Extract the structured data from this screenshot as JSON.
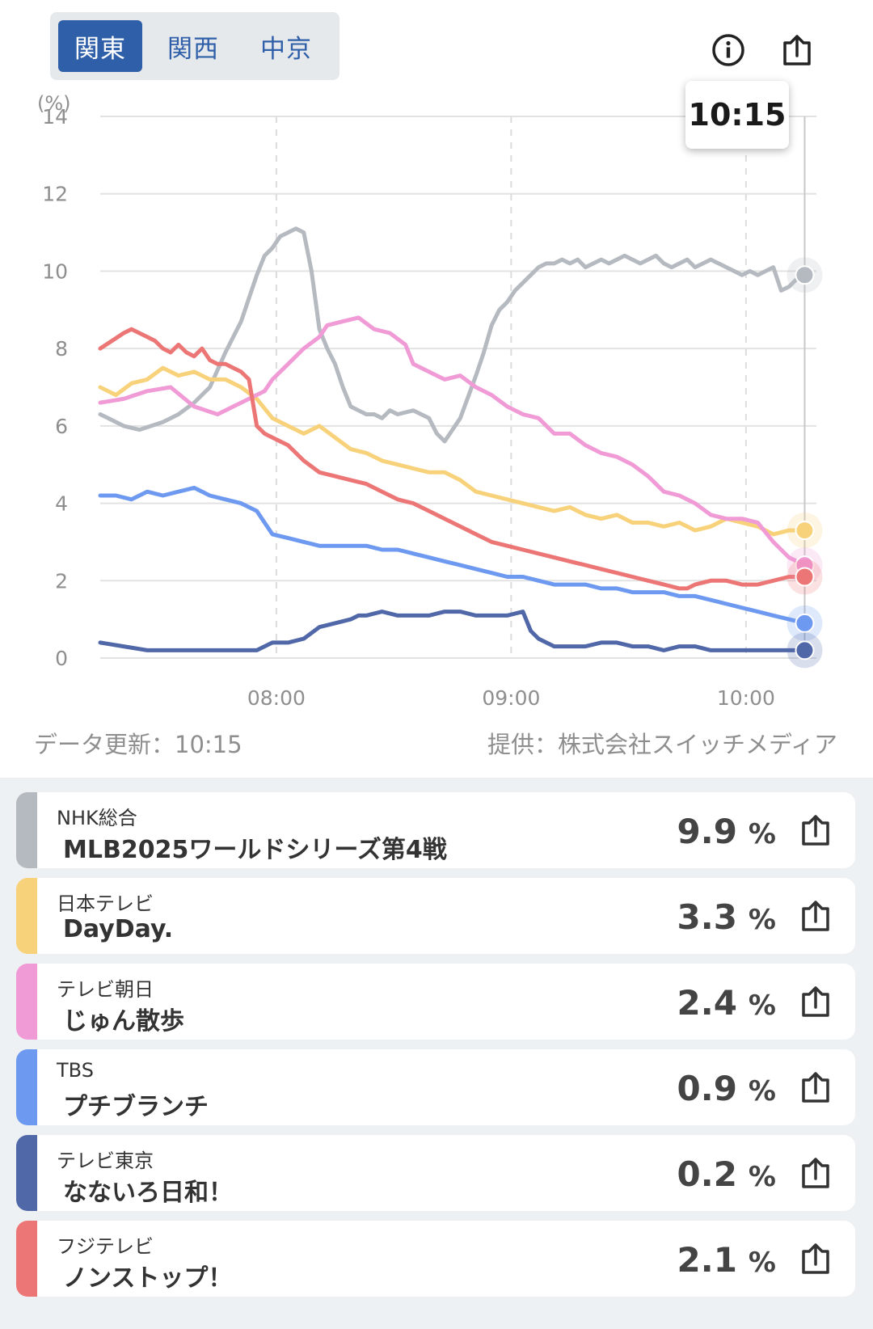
{
  "region_tabs": [
    {
      "label": "関東",
      "active": true
    },
    {
      "label": "関西",
      "active": false
    },
    {
      "label": "中京",
      "active": false
    }
  ],
  "icons": {
    "info": "info-icon",
    "share": "share-icon"
  },
  "tooltip_time": "10:15",
  "footer": {
    "update_label": "データ更新：10:15",
    "provider_label": "提供：株式会社スイッチメディア"
  },
  "chart_data": {
    "type": "line",
    "ylabel": "(%)",
    "ylim": [
      0,
      14
    ],
    "yticks": [
      "0",
      "2",
      "4",
      "6",
      "8",
      "10",
      "12",
      "14"
    ],
    "x_range": [
      "07:15",
      "10:18"
    ],
    "xticks": [
      "08:00",
      "09:00",
      "10:00"
    ],
    "cursor_time": "10:15",
    "series": [
      {
        "name": "NHK総合",
        "color": "#b5b9c0",
        "times": [
          0,
          2,
          6,
          10,
          16,
          20,
          24,
          28,
          32,
          36,
          40,
          42,
          44,
          46,
          48,
          50,
          52,
          54,
          56,
          58,
          60,
          62,
          64,
          66,
          68,
          70,
          72,
          74,
          76,
          80,
          84,
          86,
          88,
          92,
          96,
          98,
          100,
          102,
          104,
          106,
          108,
          110,
          112,
          114,
          116,
          118,
          120,
          122,
          124,
          126,
          128,
          130,
          132,
          134,
          136,
          138,
          140,
          142,
          144,
          146,
          148,
          150,
          152,
          154,
          156,
          158,
          160,
          162,
          164,
          166,
          168,
          170,
          172,
          174,
          176,
          178,
          180
        ],
        "values": [
          6.3,
          6.2,
          6.0,
          5.9,
          6.1,
          6.3,
          6.6,
          7.0,
          7.9,
          8.7,
          9.9,
          10.4,
          10.6,
          10.9,
          11.0,
          11.1,
          11.0,
          10.0,
          8.5,
          8.0,
          7.6,
          7.0,
          6.5,
          6.4,
          6.3,
          6.3,
          6.2,
          6.4,
          6.3,
          6.4,
          6.2,
          5.8,
          5.6,
          6.2,
          7.3,
          7.9,
          8.6,
          9.0,
          9.2,
          9.5,
          9.7,
          9.9,
          10.1,
          10.2,
          10.2,
          10.3,
          10.2,
          10.3,
          10.1,
          10.2,
          10.3,
          10.2,
          10.3,
          10.4,
          10.3,
          10.2,
          10.3,
          10.4,
          10.2,
          10.1,
          10.2,
          10.3,
          10.1,
          10.2,
          10.3,
          10.2,
          10.1,
          10.0,
          9.9,
          10.0,
          9.9,
          10.0,
          10.1,
          9.5,
          9.6,
          9.8,
          9.9
        ]
      },
      {
        "name": "日本テレビ",
        "color": "#f8d27a",
        "times": [
          0,
          4,
          8,
          12,
          16,
          20,
          24,
          28,
          32,
          36,
          40,
          44,
          48,
          52,
          56,
          60,
          64,
          68,
          72,
          76,
          80,
          84,
          88,
          92,
          96,
          100,
          104,
          108,
          112,
          116,
          120,
          124,
          128,
          132,
          136,
          140,
          144,
          148,
          152,
          156,
          160,
          164,
          168,
          172,
          176,
          180
        ],
        "values": [
          7.0,
          6.8,
          7.1,
          7.2,
          7.5,
          7.3,
          7.4,
          7.2,
          7.2,
          7.0,
          6.7,
          6.2,
          6.0,
          5.8,
          6.0,
          5.7,
          5.4,
          5.3,
          5.1,
          5.0,
          4.9,
          4.8,
          4.8,
          4.6,
          4.3,
          4.2,
          4.1,
          4.0,
          3.9,
          3.8,
          3.9,
          3.7,
          3.6,
          3.7,
          3.5,
          3.5,
          3.4,
          3.5,
          3.3,
          3.4,
          3.6,
          3.5,
          3.4,
          3.2,
          3.3,
          3.3
        ]
      },
      {
        "name": "テレビ朝日",
        "color": "#f09ad6",
        "times": [
          0,
          6,
          12,
          18,
          24,
          30,
          34,
          38,
          42,
          44,
          48,
          52,
          56,
          58,
          62,
          66,
          70,
          74,
          78,
          80,
          84,
          88,
          92,
          96,
          100,
          104,
          108,
          112,
          116,
          120,
          124,
          128,
          132,
          136,
          140,
          144,
          148,
          152,
          156,
          160,
          164,
          168,
          172,
          174,
          176,
          178,
          180
        ],
        "values": [
          6.6,
          6.7,
          6.9,
          7.0,
          6.5,
          6.3,
          6.5,
          6.7,
          6.9,
          7.2,
          7.6,
          8.0,
          8.3,
          8.6,
          8.7,
          8.8,
          8.5,
          8.4,
          8.1,
          7.6,
          7.4,
          7.2,
          7.3,
          7.0,
          6.8,
          6.5,
          6.3,
          6.2,
          5.8,
          5.8,
          5.5,
          5.3,
          5.2,
          5.0,
          4.7,
          4.3,
          4.2,
          4.0,
          3.7,
          3.6,
          3.6,
          3.5,
          3.0,
          2.8,
          2.6,
          2.5,
          2.4
        ]
      },
      {
        "name": "TBS",
        "color": "#6e99f0",
        "times": [
          0,
          4,
          8,
          12,
          16,
          20,
          24,
          28,
          32,
          36,
          40,
          42,
          44,
          48,
          52,
          56,
          60,
          64,
          68,
          72,
          76,
          80,
          84,
          88,
          92,
          96,
          100,
          104,
          108,
          112,
          116,
          120,
          124,
          128,
          132,
          136,
          140,
          144,
          148,
          152,
          156,
          160,
          164,
          168,
          172,
          176,
          180
        ],
        "values": [
          4.2,
          4.2,
          4.1,
          4.3,
          4.2,
          4.3,
          4.4,
          4.2,
          4.1,
          4.0,
          3.8,
          3.5,
          3.2,
          3.1,
          3.0,
          2.9,
          2.9,
          2.9,
          2.9,
          2.8,
          2.8,
          2.7,
          2.6,
          2.5,
          2.4,
          2.3,
          2.2,
          2.1,
          2.1,
          2.0,
          1.9,
          1.9,
          1.9,
          1.8,
          1.8,
          1.7,
          1.7,
          1.7,
          1.6,
          1.6,
          1.5,
          1.4,
          1.3,
          1.2,
          1.1,
          1.0,
          0.9
        ]
      },
      {
        "name": "テレビ東京",
        "color": "#5068a8",
        "times": [
          0,
          6,
          12,
          18,
          24,
          30,
          36,
          40,
          44,
          48,
          52,
          56,
          60,
          64,
          66,
          68,
          72,
          76,
          80,
          84,
          88,
          92,
          96,
          100,
          104,
          108,
          110,
          112,
          116,
          120,
          124,
          128,
          132,
          136,
          140,
          144,
          148,
          152,
          156,
          160,
          164,
          168,
          172,
          176,
          180
        ],
        "values": [
          0.4,
          0.3,
          0.2,
          0.2,
          0.2,
          0.2,
          0.2,
          0.2,
          0.4,
          0.4,
          0.5,
          0.8,
          0.9,
          1.0,
          1.1,
          1.1,
          1.2,
          1.1,
          1.1,
          1.1,
          1.2,
          1.2,
          1.1,
          1.1,
          1.1,
          1.2,
          0.7,
          0.5,
          0.3,
          0.3,
          0.3,
          0.4,
          0.4,
          0.3,
          0.3,
          0.2,
          0.3,
          0.3,
          0.2,
          0.2,
          0.2,
          0.2,
          0.2,
          0.2,
          0.2
        ]
      },
      {
        "name": "フジテレビ",
        "color": "#ec7675",
        "times": [
          0,
          3,
          6,
          8,
          10,
          12,
          14,
          16,
          18,
          20,
          22,
          24,
          26,
          28,
          30,
          32,
          34,
          36,
          38,
          40,
          42,
          44,
          48,
          52,
          56,
          60,
          64,
          68,
          72,
          76,
          80,
          84,
          88,
          92,
          96,
          100,
          104,
          108,
          112,
          116,
          120,
          124,
          128,
          132,
          136,
          140,
          144,
          148,
          150,
          152,
          156,
          160,
          164,
          168,
          172,
          176,
          180
        ],
        "values": [
          8.0,
          8.2,
          8.4,
          8.5,
          8.4,
          8.3,
          8.2,
          8.0,
          7.9,
          8.1,
          7.9,
          7.8,
          8.0,
          7.7,
          7.6,
          7.6,
          7.5,
          7.4,
          7.2,
          6.0,
          5.8,
          5.7,
          5.5,
          5.1,
          4.8,
          4.7,
          4.6,
          4.5,
          4.3,
          4.1,
          4.0,
          3.8,
          3.6,
          3.4,
          3.2,
          3.0,
          2.9,
          2.8,
          2.7,
          2.6,
          2.5,
          2.4,
          2.3,
          2.2,
          2.1,
          2.0,
          1.9,
          1.8,
          1.8,
          1.9,
          2.0,
          2.0,
          1.9,
          1.9,
          2.0,
          2.1,
          2.1
        ]
      }
    ]
  },
  "cards": [
    {
      "station": "NHK総合",
      "program": "MLB2025ワールドシリーズ第4戦",
      "value": "9.9",
      "unit": "%",
      "color": "#b5b9c0"
    },
    {
      "station": "日本テレビ",
      "program": "DayDay.",
      "value": "3.3",
      "unit": "%",
      "color": "#f8d27a"
    },
    {
      "station": "テレビ朝日",
      "program": "じゅん散歩",
      "value": "2.4",
      "unit": "%",
      "color": "#f09ad6"
    },
    {
      "station": "TBS",
      "program": "プチブランチ",
      "value": "0.9",
      "unit": "%",
      "color": "#6e99f0"
    },
    {
      "station": "テレビ東京",
      "program": "なないろ日和！",
      "value": "0.2",
      "unit": "%",
      "color": "#5068a8"
    },
    {
      "station": "フジテレビ",
      "program": "ノンストップ！",
      "value": "2.1",
      "unit": "%",
      "color": "#ec7675"
    }
  ]
}
